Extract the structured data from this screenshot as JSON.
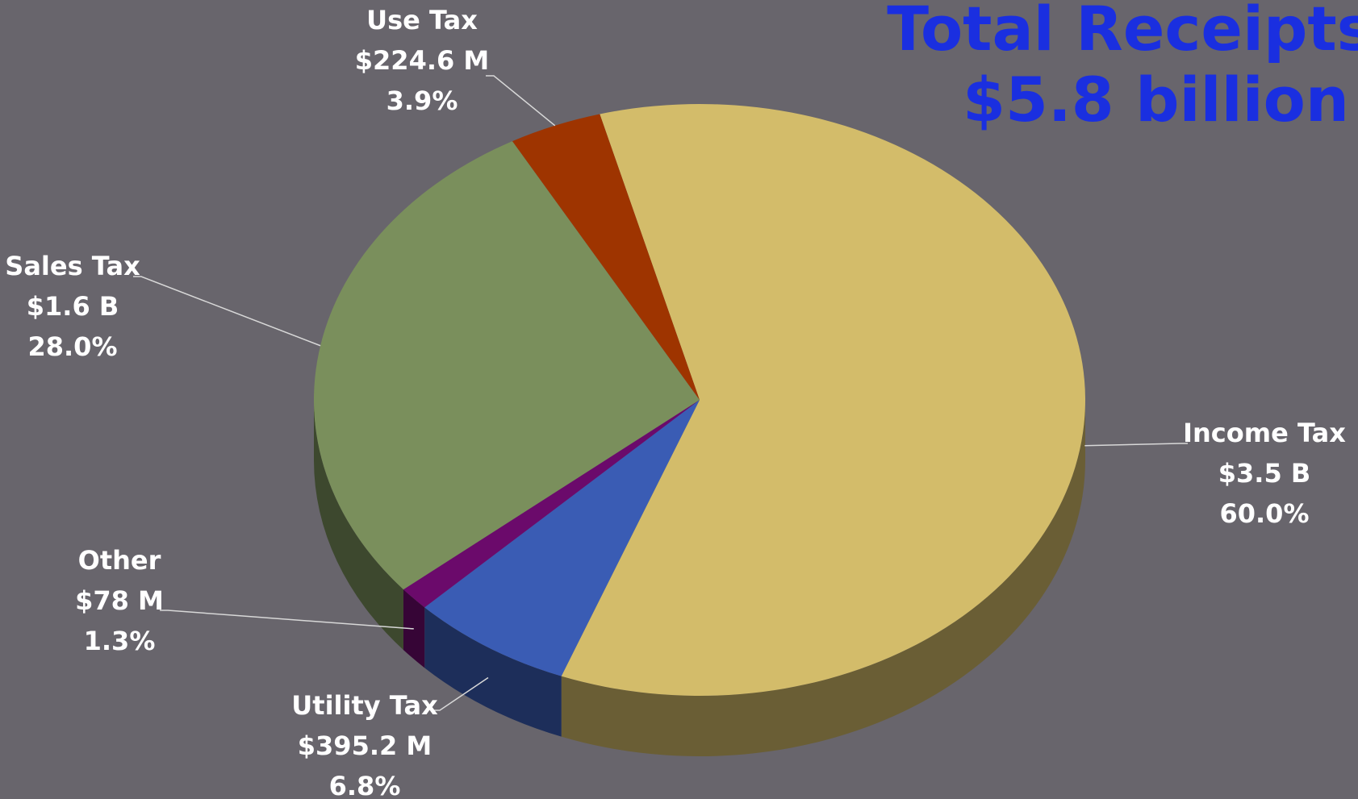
{
  "chart_data": {
    "type": "pie",
    "title": "Total Receipts",
    "subtitle": "$5.8 billion",
    "categories": [
      "Income Tax",
      "Utility Tax",
      "Other",
      "Sales Tax",
      "Use Tax"
    ],
    "values": [
      60.0,
      6.8,
      1.3,
      28.0,
      3.9
    ],
    "value_labels": [
      "60.0%",
      "6.8%",
      "1.3%",
      "28.0%",
      "3.9%"
    ],
    "amount_labels": [
      "$3.5 B",
      "$395.2 M",
      "$78 M",
      "$1.6 B",
      "$224.6 M"
    ],
    "colors": [
      "#d3bc6a",
      "#3a5cb4",
      "#6b0a6b",
      "#7a8f5c",
      "#9e3400"
    ]
  }
}
